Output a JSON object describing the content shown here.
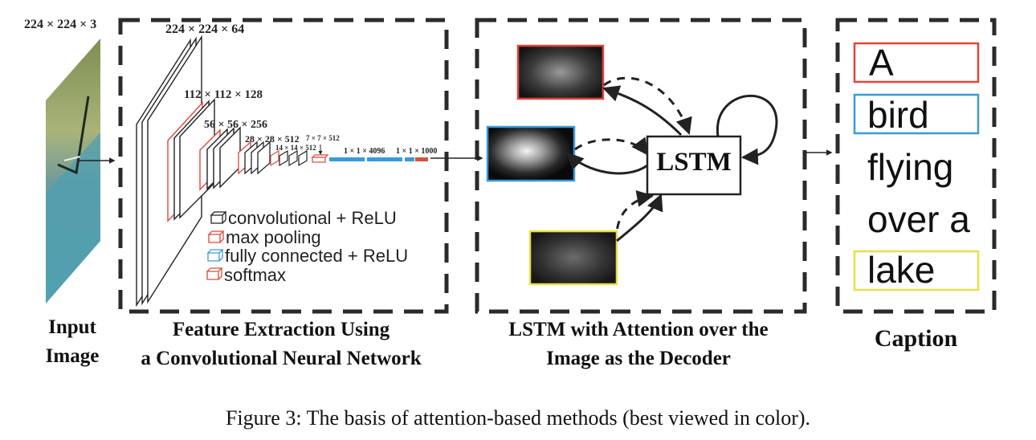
{
  "input": {
    "dims": "224 × 224 × 3",
    "label_line1": "Input",
    "label_line2": "Image"
  },
  "cnn": {
    "dims_conv1": "224 × 224 × 64",
    "dims_conv2": "112 × 112 × 128",
    "dims_conv3": "56 × 56 × 256",
    "dims_conv4": "28 × 28 × 512",
    "dims_conv5": "14 × 14 × 512",
    "dims_pool5": "7 × 7 × 512",
    "dims_fc": "1 × 1 × 4096",
    "dims_softmax": "1 × 1 × 1000",
    "label_line1": "Feature Extraction Using",
    "label_line2": "a Convolutional Neural Network",
    "legend": [
      {
        "text": "convolutional + ReLU",
        "color": "#222222"
      },
      {
        "text": "max pooling",
        "color": "#e0463a"
      },
      {
        "text": "fully connected + ReLU",
        "color": "#3a9ad9"
      },
      {
        "text": "softmax",
        "color": "#d1553b"
      }
    ]
  },
  "decoder": {
    "lstm_label": "LSTM",
    "label_line1": "LSTM with Attention over the",
    "label_line2": "Image as the Decoder",
    "attention_colors": [
      "#e0463a",
      "#3a9ad9",
      "#e6e04a"
    ]
  },
  "caption_panel": {
    "title": "Caption",
    "words": [
      {
        "text": "A",
        "box_color": "#e0463a"
      },
      {
        "text": "bird",
        "box_color": "#3a9ad9"
      },
      {
        "text": "flying",
        "box_color": ""
      },
      {
        "text": "over a",
        "box_color": ""
      },
      {
        "text": "lake",
        "box_color": "#e6e04a"
      }
    ]
  },
  "figure_caption": "Figure 3: The basis of attention-based methods (best viewed in color)."
}
